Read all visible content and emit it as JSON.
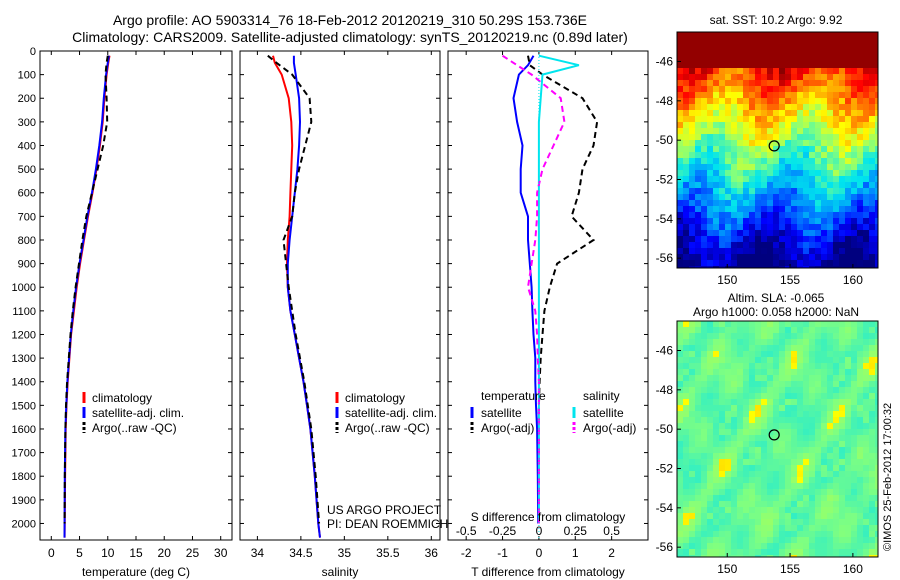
{
  "header": {
    "line1": "Argo profile: AO 5903314_76 18-Feb-2012 20120219_310 50.29S 153.736E",
    "line2": "Climatology: CARS2009. Satellite-adjusted climatology: synTS_20120219.nc (0.89d later)"
  },
  "colors": {
    "climatology": "#ff0000",
    "satellite": "#0000ff",
    "argo": "#000000",
    "sal_satellite": "#00e5ee",
    "sal_argo": "#ff00ff"
  },
  "chart_data": [
    {
      "type": "line",
      "id": "temperature",
      "xlabel": "temperature (deg C)",
      "ylabel": "",
      "xlim": [
        -2,
        32
      ],
      "ylim": [
        2070,
        0
      ],
      "y_reversed": true,
      "xticks": [
        0,
        5,
        10,
        15,
        20,
        25,
        30
      ],
      "yticks": [
        0,
        100,
        200,
        300,
        400,
        500,
        600,
        700,
        800,
        900,
        1000,
        1100,
        1200,
        1300,
        1400,
        1500,
        1600,
        1700,
        1800,
        1900,
        2000
      ],
      "legend": {
        "position": "bottom-right",
        "entries": [
          "climatology",
          "satellite-adj. clim.",
          "Argo(..raw -QC)"
        ]
      },
      "series": [
        {
          "name": "climatology",
          "style": "solid",
          "color": "#ff0000",
          "x": [
            10.3,
            10.1,
            9.8,
            9.4,
            9.1,
            8.6,
            8.0,
            7.3,
            6.5,
            5.8,
            5.1,
            4.5,
            4.0,
            3.5,
            3.2,
            2.9,
            2.7,
            2.55,
            2.45,
            2.38,
            2.35
          ],
          "y": [
            20,
            50,
            100,
            200,
            300,
            400,
            500,
            600,
            700,
            800,
            900,
            1000,
            1100,
            1200,
            1300,
            1400,
            1500,
            1600,
            1800,
            2000,
            2060
          ]
        },
        {
          "name": "satellite-adj. clim.",
          "style": "solid",
          "color": "#0000ff",
          "x": [
            10.2,
            10.0,
            9.7,
            9.3,
            9.0,
            8.5,
            7.9,
            7.2,
            6.4,
            5.7,
            5.0,
            4.4,
            3.9,
            3.45,
            3.15,
            2.85,
            2.65,
            2.5,
            2.4,
            2.35,
            2.33
          ],
          "y": [
            20,
            50,
            100,
            200,
            300,
            400,
            500,
            600,
            700,
            800,
            900,
            1000,
            1100,
            1200,
            1300,
            1400,
            1500,
            1600,
            1800,
            2000,
            2060
          ]
        },
        {
          "name": "Argo(..raw -QC)",
          "style": "dashed",
          "color": "#000000",
          "x": [
            10.0,
            9.8,
            9.6,
            9.8,
            9.9,
            9.2,
            8.2,
            7.2,
            6.2,
            5.5,
            4.9,
            4.3,
            3.8,
            3.4,
            3.1,
            2.8,
            2.6,
            2.5,
            2.4,
            2.35
          ],
          "y": [
            20,
            50,
            100,
            200,
            300,
            400,
            500,
            600,
            700,
            800,
            900,
            1000,
            1100,
            1200,
            1300,
            1400,
            1500,
            1600,
            1800,
            2000
          ]
        }
      ]
    },
    {
      "type": "line",
      "id": "salinity",
      "xlabel": "salinity",
      "ylabel": "",
      "xlim": [
        33.8,
        36.1
      ],
      "ylim": [
        2070,
        0
      ],
      "y_reversed": true,
      "xticks": [
        34,
        34.5,
        35,
        35.5,
        36
      ],
      "legend": {
        "position": "bottom-right",
        "entries": [
          "climatology",
          "satellite-adj. clim.",
          "Argo(..raw -QC)"
        ]
      },
      "annotation": [
        "US ARGO PROJECT",
        "PI: DEAN ROEMMICH"
      ],
      "series": [
        {
          "name": "climatology",
          "style": "solid",
          "color": "#ff0000",
          "x": [
            34.18,
            34.2,
            34.28,
            34.36,
            34.39,
            34.4,
            34.39,
            34.38,
            34.37,
            34.35,
            34.34,
            34.35,
            34.38,
            34.43,
            34.48,
            34.53,
            34.57,
            34.61,
            34.66,
            34.7,
            34.72
          ],
          "y": [
            20,
            50,
            100,
            200,
            300,
            400,
            500,
            600,
            700,
            800,
            900,
            1000,
            1100,
            1200,
            1300,
            1400,
            1500,
            1600,
            1800,
            2000,
            2060
          ]
        },
        {
          "name": "satellite-adj. clim.",
          "style": "solid",
          "color": "#0000ff",
          "x": [
            34.42,
            34.42,
            34.44,
            34.48,
            34.49,
            34.48,
            34.46,
            34.43,
            34.4,
            34.37,
            34.35,
            34.35,
            34.38,
            34.43,
            34.48,
            34.53,
            34.57,
            34.61,
            34.66,
            34.7,
            34.72
          ],
          "y": [
            20,
            50,
            100,
            200,
            300,
            400,
            500,
            600,
            700,
            800,
            900,
            1000,
            1100,
            1200,
            1300,
            1400,
            1500,
            1600,
            1800,
            2000,
            2060
          ]
        },
        {
          "name": "Argo(..raw -QC)",
          "style": "dashed",
          "color": "#000000",
          "x": [
            34.12,
            34.22,
            34.4,
            34.6,
            34.62,
            34.55,
            34.48,
            34.43,
            34.4,
            34.3,
            34.33,
            34.36,
            34.4,
            34.44,
            34.49,
            34.54,
            34.58,
            34.62,
            34.67,
            34.71
          ],
          "y": [
            20,
            50,
            100,
            200,
            300,
            400,
            500,
            600,
            700,
            800,
            900,
            1000,
            1100,
            1200,
            1300,
            1400,
            1500,
            1600,
            1800,
            2000
          ]
        }
      ]
    },
    {
      "type": "line",
      "id": "differences",
      "xlabel": "T difference from climatology",
      "x2label": "S difference from climatology",
      "xlim": [
        -2.5,
        3
      ],
      "ylim": [
        2070,
        0
      ],
      "y_reversed": true,
      "xticks": [
        -2,
        -1,
        0,
        1,
        2
      ],
      "x2ticks": [
        -0.5,
        -0.25,
        0,
        0.25,
        0.5
      ],
      "x2tick_labels": [
        "-0.5",
        "-0.25",
        "0",
        "0.25",
        "0.5"
      ],
      "legend": {
        "position": "bottom",
        "temperature_header": "temperature",
        "salinity_header": "salinity",
        "entries": [
          "satellite",
          "Argo(-adj)",
          "satellite",
          "Argo(-adj)"
        ]
      },
      "series": [
        {
          "name": "temperature satellite",
          "style": "solid",
          "color": "#0000ff",
          "x": [
            -0.15,
            -0.3,
            -0.55,
            -0.7,
            -0.6,
            -0.45,
            -0.5,
            -0.5,
            -0.3,
            -0.3,
            -0.25,
            -0.2,
            -0.18,
            -0.15,
            -0.1,
            -0.1,
            -0.08,
            -0.05,
            -0.03,
            -0.02
          ],
          "y": [
            20,
            60,
            100,
            200,
            300,
            400,
            500,
            600,
            700,
            800,
            900,
            1000,
            1100,
            1200,
            1300,
            1400,
            1500,
            1600,
            1800,
            2000
          ]
        },
        {
          "name": "temperature Argo(-adj)",
          "style": "dashed",
          "color": "#000000",
          "x": [
            -0.3,
            -0.25,
            0.1,
            1.2,
            1.6,
            1.5,
            1.2,
            1.1,
            0.9,
            1.5,
            0.5,
            0.3,
            0.15,
            0.1,
            0.05,
            0.02,
            0.0,
            0.0,
            0.0,
            0.0
          ],
          "y": [
            20,
            60,
            100,
            200,
            300,
            400,
            500,
            600,
            700,
            800,
            900,
            1000,
            1100,
            1200,
            1300,
            1400,
            1500,
            1600,
            1800,
            2000
          ]
        },
        {
          "name": "salinity satellite",
          "style": "solid",
          "color": "#00e5ee",
          "x": [
            0.0,
            1.1,
            0.1,
            0.05,
            0.0,
            0.0,
            0.0,
            0.0,
            0.0,
            0.0,
            0.0,
            0.0,
            0.0,
            0.0,
            0.0,
            0.0,
            0.0,
            0.0,
            0.0,
            0.0
          ],
          "y": [
            20,
            60,
            100,
            200,
            300,
            400,
            500,
            600,
            700,
            800,
            900,
            1000,
            1100,
            1200,
            1300,
            1400,
            1500,
            1600,
            1800,
            2000
          ]
        },
        {
          "name": "salinity Argo(-adj)",
          "style": "dashed",
          "color": "#ff00ff",
          "x": [
            -1.0,
            -0.6,
            -0.2,
            0.6,
            0.7,
            0.4,
            0.1,
            -0.05,
            -0.05,
            -0.1,
            -0.2,
            -0.3,
            -0.1,
            -0.05,
            -0.03,
            0.0,
            0.0,
            0.0,
            0.0,
            0.0
          ],
          "y": [
            20,
            60,
            100,
            200,
            300,
            400,
            500,
            600,
            700,
            800,
            900,
            1000,
            1100,
            1200,
            1300,
            1400,
            1500,
            1600,
            1800,
            2000
          ]
        }
      ]
    },
    {
      "type": "heatmap",
      "id": "sst-map",
      "title": "sat. SST: 10.2 Argo: 9.92",
      "xlim": [
        146,
        162
      ],
      "ylim": [
        -56.5,
        -44.5
      ],
      "xticks": [
        150,
        155,
        160
      ],
      "yticks": [
        -46,
        -48,
        -50,
        -52,
        -54,
        -56
      ],
      "marker": {
        "lon": 153.736,
        "lat": -50.29
      },
      "palette": [
        "#00007f",
        "#0000ff",
        "#0080ff",
        "#00e5ee",
        "#80ff80",
        "#ffff00",
        "#ff8000",
        "#ff0000",
        "#7f0000"
      ],
      "field": "temperature gradient warm north to cold south"
    },
    {
      "type": "heatmap",
      "id": "sla-map",
      "title": "Altim. SLA: -0.065",
      "subtitle": "Argo h1000: 0.058 h2000: NaN",
      "xlim": [
        146,
        162
      ],
      "ylim": [
        -56.5,
        -44.5
      ],
      "xticks": [
        150,
        155,
        160
      ],
      "yticks": [
        -46,
        -48,
        -50,
        -52,
        -54,
        -56
      ],
      "marker": {
        "lon": 153.736,
        "lat": -50.29
      },
      "field": "sea level anomaly mostly near zero"
    }
  ],
  "footer": {
    "stamp": "©IMOS 25-Feb-2012 17:00:32"
  }
}
